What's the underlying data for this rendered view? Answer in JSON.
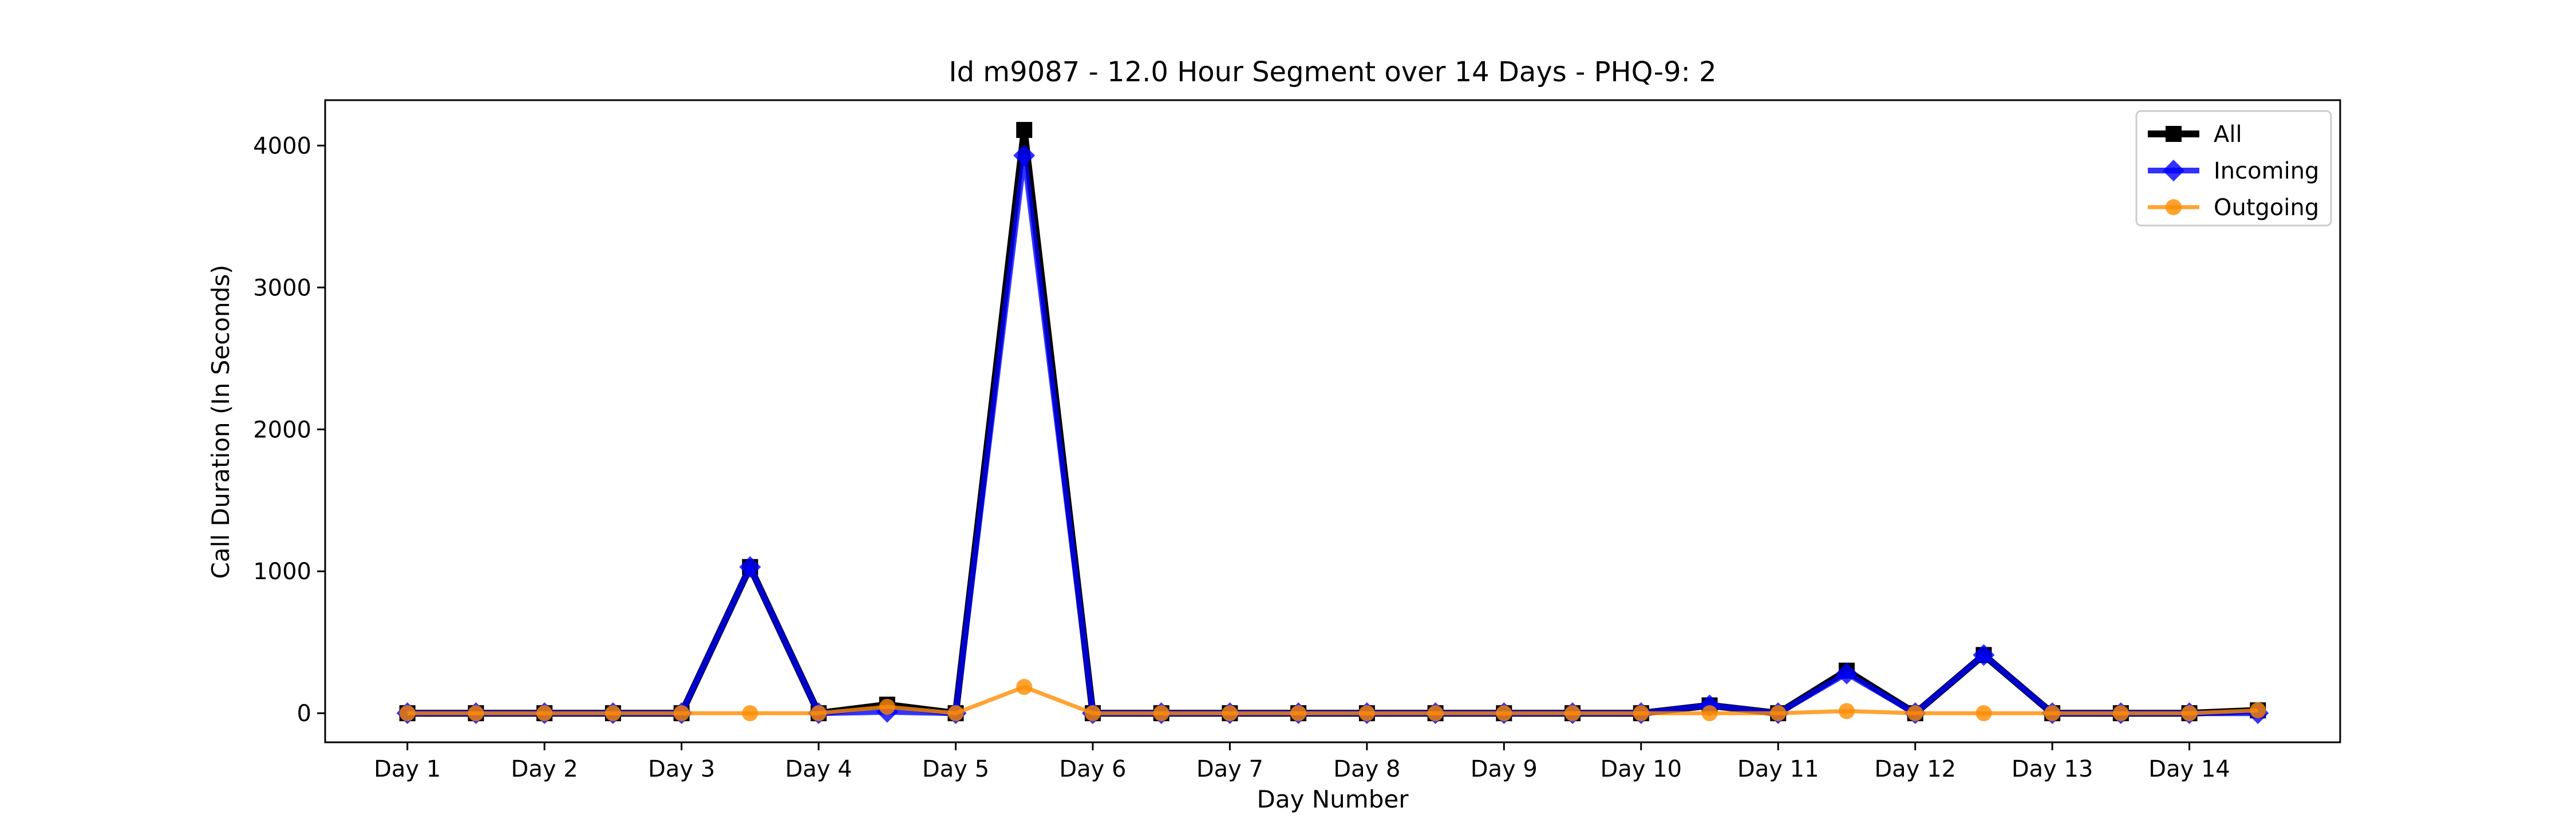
{
  "chart_data": {
    "type": "line",
    "title": "Id m9087 - 12.0 Hour Segment over 14 Days - PHQ-9: 2",
    "xlabel": "Day Number",
    "ylabel": "Call Duration (In Seconds)",
    "x": [
      1,
      1.5,
      2,
      2.5,
      3,
      3.5,
      4,
      4.5,
      5,
      5.5,
      6,
      6.5,
      7,
      7.5,
      8,
      8.5,
      9,
      9.5,
      10,
      10.5,
      11,
      11.5,
      12,
      12.5,
      13,
      13.5,
      14,
      14.5
    ],
    "xticks": [
      1,
      2,
      3,
      4,
      5,
      6,
      7,
      8,
      9,
      10,
      11,
      12,
      13,
      14
    ],
    "xtick_labels": [
      "Day 1",
      "Day 2",
      "Day 3",
      "Day 4",
      "Day 5",
      "Day 6",
      "Day 7",
      "Day 8",
      "Day 9",
      "Day 10",
      "Day 11",
      "Day 12",
      "Day 13",
      "Day 14"
    ],
    "xlim": [
      0.4,
      15.1
    ],
    "yticks": [
      0,
      1000,
      2000,
      3000,
      4000
    ],
    "ylim": [
      -205,
      4320
    ],
    "grid": false,
    "legend_position": "top-right",
    "series": [
      {
        "name": "All",
        "color": "#000000",
        "marker": "square",
        "values": [
          0,
          0,
          0,
          0,
          0,
          1030,
          0,
          60,
          0,
          4110,
          0,
          0,
          0,
          0,
          0,
          0,
          0,
          0,
          0,
          55,
          0,
          300,
          0,
          410,
          0,
          0,
          0,
          20
        ]
      },
      {
        "name": "Incoming",
        "color": "#0000ff",
        "marker": "diamond",
        "values": [
          0,
          0,
          0,
          0,
          0,
          1030,
          0,
          10,
          0,
          3930,
          0,
          0,
          0,
          0,
          0,
          0,
          0,
          0,
          0,
          55,
          0,
          280,
          0,
          410,
          0,
          0,
          0,
          0
        ]
      },
      {
        "name": "Outgoing",
        "color": "#ff8c00",
        "marker": "circle",
        "values": [
          0,
          0,
          0,
          0,
          0,
          0,
          0,
          45,
          0,
          185,
          0,
          0,
          0,
          0,
          0,
          0,
          0,
          0,
          0,
          0,
          0,
          15,
          0,
          0,
          0,
          0,
          0,
          20
        ]
      }
    ]
  }
}
